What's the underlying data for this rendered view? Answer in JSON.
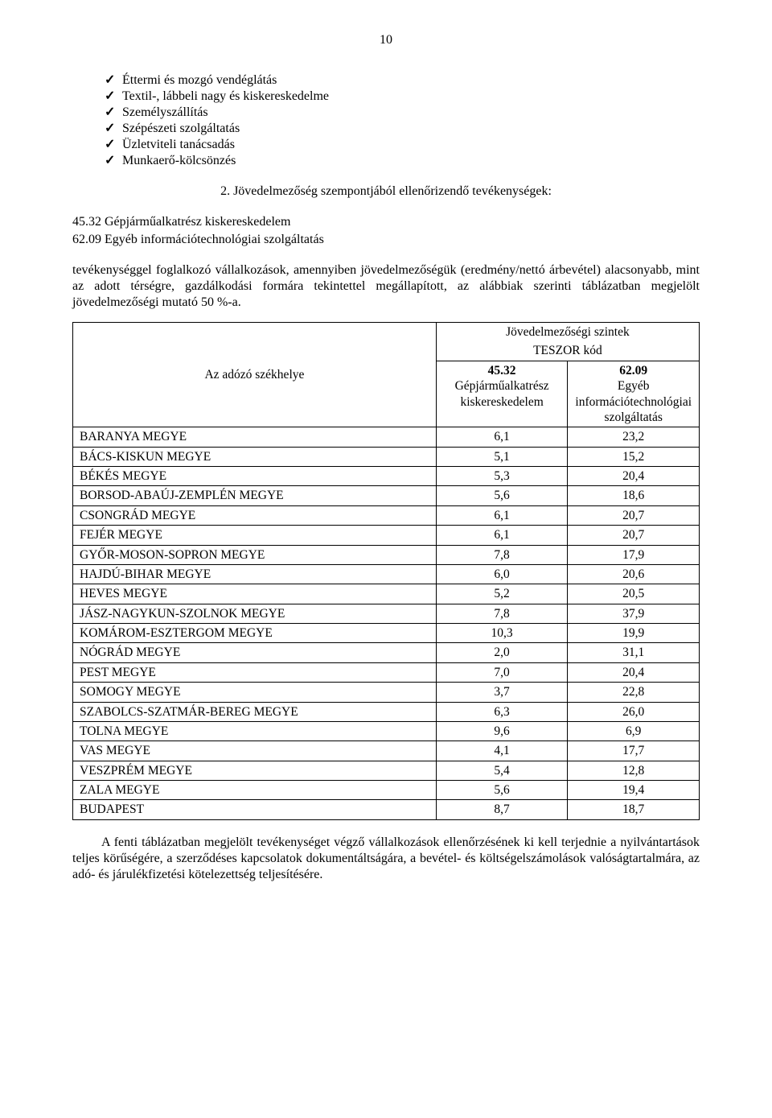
{
  "page_number": "10",
  "checklist": [
    "Éttermi és mozgó vendéglátás",
    "Textil-, lábbeli nagy és kiskereskedelme",
    "Személyszállítás",
    "Szépészeti szolgáltatás",
    "Üzletviteli tanácsadás",
    "Munkaerő-kölcsönzés"
  ],
  "sub_heading": "2. Jövedelmezőség szempontjából ellenőrizendő tevékenységek:",
  "codes": {
    "line1": "45.32 Gépjárműalkatrész kiskereskedelem",
    "line2": "62.09 Egyéb információtechnológiai szolgáltatás"
  },
  "para1": "tevékenységgel foglalkozó vállalkozások, amennyiben jövedelmezőségük (eredmény/nettó árbevétel) alacsonyabb, mint az adott térségre, gazdálkodási formára tekintettel megállapított, az alábbiak szerinti táblázatban megjelölt jövedelmezőségi mutató 50 %-a.",
  "table": {
    "title": "Jövedelmezőségi szintek",
    "sub_title": "TESZOR kód",
    "row_header": "Az adózó székhelye",
    "col1_code": "45.32",
    "col1_label": "Gépjárműalkatrész kiskereskedelem",
    "col2_code": "62.09",
    "col2_label": "Egyéb információtechnológiai szolgáltatás",
    "rows": [
      {
        "county": "BARANYA MEGYE",
        "v1": "6,1",
        "v2": "23,2"
      },
      {
        "county": "BÁCS-KISKUN MEGYE",
        "v1": "5,1",
        "v2": "15,2"
      },
      {
        "county": "BÉKÉS MEGYE",
        "v1": "5,3",
        "v2": "20,4"
      },
      {
        "county": "BORSOD-ABAÚJ-ZEMPLÉN MEGYE",
        "v1": "5,6",
        "v2": "18,6"
      },
      {
        "county": "CSONGRÁD MEGYE",
        "v1": "6,1",
        "v2": "20,7"
      },
      {
        "county": "FEJÉR MEGYE",
        "v1": "6,1",
        "v2": "20,7"
      },
      {
        "county": "GYŐR-MOSON-SOPRON MEGYE",
        "v1": "7,8",
        "v2": "17,9"
      },
      {
        "county": "HAJDÚ-BIHAR MEGYE",
        "v1": "6,0",
        "v2": "20,6"
      },
      {
        "county": "HEVES MEGYE",
        "v1": "5,2",
        "v2": "20,5"
      },
      {
        "county": "JÁSZ-NAGYKUN-SZOLNOK MEGYE",
        "v1": "7,8",
        "v2": "37,9"
      },
      {
        "county": "KOMÁROM-ESZTERGOM MEGYE",
        "v1": "10,3",
        "v2": "19,9"
      },
      {
        "county": "NÓGRÁD MEGYE",
        "v1": "2,0",
        "v2": "31,1"
      },
      {
        "county": "PEST MEGYE",
        "v1": "7,0",
        "v2": "20,4"
      },
      {
        "county": "SOMOGY MEGYE",
        "v1": "3,7",
        "v2": "22,8"
      },
      {
        "county": "SZABOLCS-SZATMÁR-BEREG MEGYE",
        "v1": "6,3",
        "v2": "26,0"
      },
      {
        "county": "TOLNA MEGYE",
        "v1": "9,6",
        "v2": "6,9"
      },
      {
        "county": "VAS MEGYE",
        "v1": "4,1",
        "v2": "17,7"
      },
      {
        "county": "VESZPRÉM MEGYE",
        "v1": "5,4",
        "v2": "12,8"
      },
      {
        "county": "ZALA MEGYE",
        "v1": "5,6",
        "v2": "19,4"
      },
      {
        "county": "BUDAPEST",
        "v1": "8,7",
        "v2": "18,7"
      }
    ]
  },
  "para2": "A fenti táblázatban megjelölt tevékenységet végző vállalkozások ellenőrzésének ki kell terjednie a nyilvántartások teljes körűségére, a szerződéses kapcsolatok dokumentáltságára, a bevétel- és költségelszámolások valóságtartalmára, az adó- és járulékfizetési kötelezettség teljesítésére."
}
